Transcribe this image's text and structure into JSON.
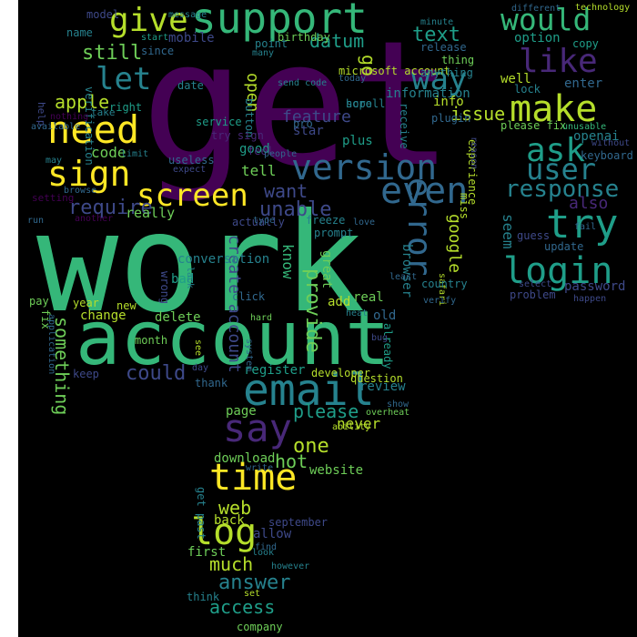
{
  "background": "#000000",
  "palette": [
    "#440154",
    "#482878",
    "#3e4989",
    "#31688e",
    "#26828e",
    "#1f9e89",
    "#35b779",
    "#6ece58",
    "#b5de2b",
    "#fde725"
  ],
  "words": [
    {
      "text": "get",
      "color": "#440154"
    },
    {
      "text": "work",
      "color": "#35b779"
    },
    {
      "text": "account",
      "color": "#35b779"
    },
    {
      "text": "support",
      "color": "#35b779"
    },
    {
      "text": "give",
      "color": "#b5de2b"
    },
    {
      "text": "version",
      "color": "#31688e"
    },
    {
      "text": "need",
      "color": "#fde725"
    },
    {
      "text": "sign",
      "color": "#fde725"
    },
    {
      "text": "screen",
      "color": "#fde725"
    },
    {
      "text": "even",
      "color": "#31688e"
    },
    {
      "text": "email",
      "color": "#26828e"
    },
    {
      "text": "say",
      "color": "#482878"
    },
    {
      "text": "time",
      "color": "#fde725"
    },
    {
      "text": "log",
      "color": "#b5de2b"
    },
    {
      "text": "would",
      "color": "#35b779"
    },
    {
      "text": "like",
      "color": "#482878"
    },
    {
      "text": "make",
      "color": "#b5de2b"
    },
    {
      "text": "ask",
      "color": "#1f9e89"
    },
    {
      "text": "user",
      "color": "#26828e"
    },
    {
      "text": "try",
      "color": "#1f9e89"
    },
    {
      "text": "login",
      "color": "#1f9e89"
    },
    {
      "text": "response",
      "color": "#26828e"
    },
    {
      "text": "let",
      "color": "#26828e"
    },
    {
      "text": "way",
      "color": "#26828e"
    },
    {
      "text": "error",
      "color": "#31688e"
    },
    {
      "text": "require",
      "color": "#3e4989"
    },
    {
      "text": "unable",
      "color": "#3e4989"
    },
    {
      "text": "want",
      "color": "#3e4989"
    },
    {
      "text": "datum",
      "color": "#1f9e89"
    },
    {
      "text": "text",
      "color": "#1f9e89"
    },
    {
      "text": "still",
      "color": "#6ece58"
    },
    {
      "text": "apple",
      "color": "#b5de2b"
    },
    {
      "text": "open",
      "color": "#b5de2b"
    },
    {
      "text": "feature",
      "color": "#3e4989"
    },
    {
      "text": "google",
      "color": "#b5de2b"
    },
    {
      "text": "really",
      "color": "#6ece58"
    },
    {
      "text": "create account",
      "color": "#3e4989"
    },
    {
      "text": "know",
      "color": "#35b779"
    },
    {
      "text": "provide",
      "color": "#6ece58"
    },
    {
      "text": "please",
      "color": "#1f9e89"
    },
    {
      "text": "one",
      "color": "#b5de2b"
    },
    {
      "text": "hot",
      "color": "#6ece58"
    },
    {
      "text": "never",
      "color": "#b5de2b"
    },
    {
      "text": "web",
      "color": "#b5de2b"
    },
    {
      "text": "much",
      "color": "#b5de2b"
    },
    {
      "text": "answer",
      "color": "#26828e"
    },
    {
      "text": "access",
      "color": "#1f9e89"
    },
    {
      "text": "could",
      "color": "#3e4989"
    },
    {
      "text": "issue",
      "color": "#b5de2b"
    },
    {
      "text": "go",
      "color": "#b5de2b"
    },
    {
      "text": "also",
      "color": "#482878"
    },
    {
      "text": "seem",
      "color": "#26828e"
    },
    {
      "text": "update",
      "color": "#31688e"
    },
    {
      "text": "problem",
      "color": "#3e4989"
    },
    {
      "text": "password",
      "color": "#3e4989"
    },
    {
      "text": "openai",
      "color": "#26828e"
    },
    {
      "text": "well",
      "color": "#b5de2b"
    },
    {
      "text": "enter",
      "color": "#31688e"
    },
    {
      "text": "option",
      "color": "#1f9e89"
    },
    {
      "text": "information",
      "color": "#26828e"
    },
    {
      "text": "mobile",
      "color": "#3e4989"
    },
    {
      "text": "birthday",
      "color": "#6ece58"
    },
    {
      "text": "code",
      "color": "#6ece58"
    },
    {
      "text": "tell",
      "color": "#6ece58"
    },
    {
      "text": "good",
      "color": "#1f9e89"
    },
    {
      "text": "plus",
      "color": "#1f9e89"
    },
    {
      "text": "great",
      "color": "#6ece58"
    },
    {
      "text": "browser",
      "color": "#26828e"
    },
    {
      "text": "info",
      "color": "#b5de2b"
    },
    {
      "text": "thing",
      "color": "#6ece58"
    },
    {
      "text": "miss",
      "color": "#b5de2b"
    },
    {
      "text": "experience",
      "color": "#b5de2b"
    },
    {
      "text": "something",
      "color": "#6ece58"
    },
    {
      "text": "change",
      "color": "#b5de2b"
    },
    {
      "text": "delete",
      "color": "#6ece58"
    },
    {
      "text": "conversation",
      "color": "#26828e"
    },
    {
      "text": "bad",
      "color": "#1f9e89"
    },
    {
      "text": "add",
      "color": "#b5de2b"
    },
    {
      "text": "real",
      "color": "#6ece58"
    },
    {
      "text": "old",
      "color": "#31688e"
    },
    {
      "text": "register",
      "color": "#1f9e89"
    },
    {
      "text": "review",
      "color": "#26828e"
    },
    {
      "text": "page",
      "color": "#6ece58"
    },
    {
      "text": "download",
      "color": "#6ece58"
    },
    {
      "text": "website",
      "color": "#6ece58"
    },
    {
      "text": "allow",
      "color": "#3e4989"
    },
    {
      "text": "back",
      "color": "#b5de2b"
    },
    {
      "text": "first",
      "color": "#6ece58"
    },
    {
      "text": "think",
      "color": "#26828e"
    },
    {
      "text": "company",
      "color": "#6ece58"
    },
    {
      "text": "keep",
      "color": "#3e4989"
    },
    {
      "text": "already",
      "color": "#1f9e89"
    },
    {
      "text": "month",
      "color": "#6ece58"
    },
    {
      "text": "pay",
      "color": "#6ece58"
    },
    {
      "text": "fix",
      "color": "#6ece58"
    },
    {
      "text": "useless",
      "color": "#31688e"
    },
    {
      "text": "service",
      "color": "#1f9e89"
    },
    {
      "text": "date",
      "color": "#26828e"
    },
    {
      "text": "take",
      "color": "#26828e"
    },
    {
      "text": "right",
      "color": "#1f9e89"
    },
    {
      "text": "button",
      "color": "#26828e"
    },
    {
      "text": "verification",
      "color": "#26828e"
    },
    {
      "text": "help",
      "color": "#3e4989"
    },
    {
      "text": "pro",
      "color": "#31688e"
    },
    {
      "text": "star",
      "color": "#3e4989"
    },
    {
      "text": "feel",
      "color": "#482878"
    },
    {
      "text": "people",
      "color": "#31688e"
    },
    {
      "text": "microsoft account",
      "color": "#b5de2b"
    },
    {
      "text": "anything",
      "color": "#26828e"
    },
    {
      "text": "receive",
      "color": "#26828e"
    },
    {
      "text": "plugin",
      "color": "#31688e"
    },
    {
      "text": "scroll",
      "color": "#26828e"
    },
    {
      "text": "hope",
      "color": "#26828e"
    },
    {
      "text": "send code",
      "color": "#26828e"
    },
    {
      "text": "please fix",
      "color": "#6ece58"
    },
    {
      "text": "without",
      "color": "#3e4989"
    },
    {
      "text": "keyboard",
      "color": "#31688e"
    },
    {
      "text": "lock",
      "color": "#26828e"
    },
    {
      "text": "model",
      "color": "#3e4989"
    },
    {
      "text": "name",
      "color": "#26828e"
    },
    {
      "text": "message",
      "color": "#26828e"
    },
    {
      "text": "start",
      "color": "#1f9e89"
    },
    {
      "text": "since",
      "color": "#31688e"
    },
    {
      "text": "point",
      "color": "#26828e"
    },
    {
      "text": "many",
      "color": "#26828e"
    },
    {
      "text": "today",
      "color": "#31688e"
    },
    {
      "text": "minute",
      "color": "#26828e"
    },
    {
      "text": "release",
      "color": "#31688e"
    },
    {
      "text": "different",
      "color": "#31688e"
    },
    {
      "text": "technology",
      "color": "#b5de2b"
    },
    {
      "text": "copy",
      "color": "#1f9e89"
    },
    {
      "text": "unusable",
      "color": "#35b779"
    },
    {
      "text": "fail",
      "color": "#31688e"
    },
    {
      "text": "guess",
      "color": "#3e4989"
    },
    {
      "text": "happen",
      "color": "#3e4989"
    },
    {
      "text": "select",
      "color": "#3e4989"
    },
    {
      "text": "nothing",
      "color": "#440154"
    },
    {
      "text": "available",
      "color": "#31688e"
    },
    {
      "text": "may",
      "color": "#26828e"
    },
    {
      "text": "limit",
      "color": "#26828e"
    },
    {
      "text": "expect",
      "color": "#3e4989"
    },
    {
      "text": "try sign",
      "color": "#482878"
    },
    {
      "text": "setting",
      "color": "#440154"
    },
    {
      "text": "browse",
      "color": "#31688e"
    },
    {
      "text": "run",
      "color": "#31688e"
    },
    {
      "text": "another",
      "color": "#440154"
    },
    {
      "text": "actually",
      "color": "#3e4989"
    },
    {
      "text": "type",
      "color": "#31688e"
    },
    {
      "text": "prompt",
      "color": "#26828e"
    },
    {
      "text": "freeze",
      "color": "#26828e"
    },
    {
      "text": "love",
      "color": "#31688e"
    },
    {
      "text": "least",
      "color": "#31688e"
    },
    {
      "text": "safari",
      "color": "#b5de2b"
    },
    {
      "text": "country",
      "color": "#26828e"
    },
    {
      "text": "verify",
      "color": "#31688e"
    },
    {
      "text": "heat",
      "color": "#26828e"
    },
    {
      "text": "bug",
      "color": "#3e4989"
    },
    {
      "text": "click",
      "color": "#31688e"
    },
    {
      "text": "hard",
      "color": "#6ece58"
    },
    {
      "text": "new",
      "color": "#b5de2b"
    },
    {
      "text": "year",
      "color": "#b5de2b"
    },
    {
      "text": "lack",
      "color": "#26828e"
    },
    {
      "text": "wrong",
      "color": "#3e4989"
    },
    {
      "text": "see",
      "color": "#b5de2b"
    },
    {
      "text": "day",
      "color": "#3e4989"
    },
    {
      "text": "system",
      "color": "#31688e"
    },
    {
      "text": "thank",
      "color": "#31688e"
    },
    {
      "text": "developer",
      "color": "#b5de2b"
    },
    {
      "text": "question",
      "color": "#b5de2b"
    },
    {
      "text": "ability",
      "color": "#b5de2b"
    },
    {
      "text": "overheat",
      "color": "#6ece58"
    },
    {
      "text": "show",
      "color": "#31688e"
    },
    {
      "text": "write",
      "color": "#31688e"
    },
    {
      "text": "september",
      "color": "#3e4989"
    },
    {
      "text": "get past",
      "color": "#26828e"
    },
    {
      "text": "find",
      "color": "#31688e"
    },
    {
      "text": "look",
      "color": "#26828e"
    },
    {
      "text": "however",
      "color": "#26828e"
    },
    {
      "text": "set",
      "color": "#b5de2b"
    },
    {
      "text": "reason",
      "color": "#3e4989"
    },
    {
      "text": "application",
      "color": "#31688e"
    },
    {
      "text": "route",
      "color": "#440154"
    }
  ]
}
